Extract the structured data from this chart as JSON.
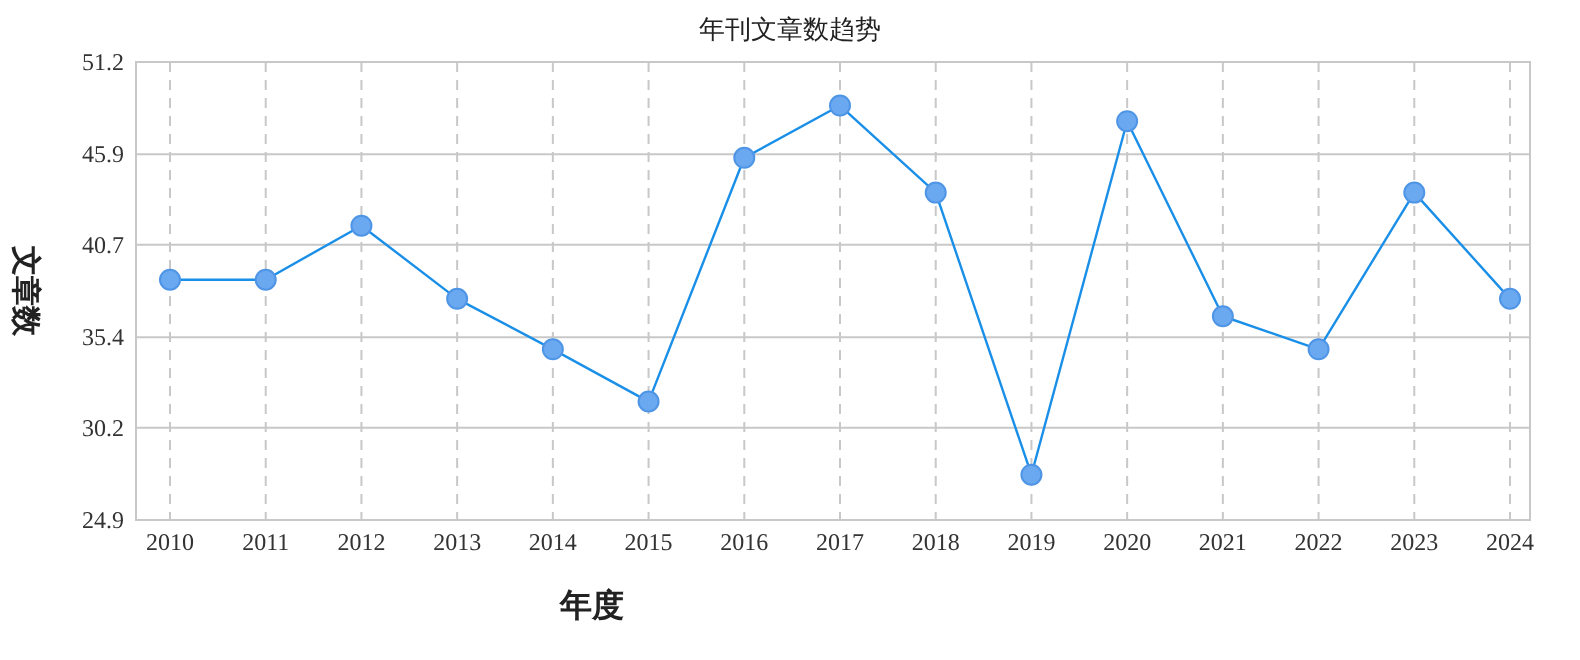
{
  "chart_data": {
    "type": "line",
    "title": "年刊文章数趋势",
    "xlabel": "年度",
    "ylabel": "文章数",
    "categories": [
      "2010",
      "2011",
      "2012",
      "2013",
      "2014",
      "2015",
      "2016",
      "2017",
      "2018",
      "2019",
      "2020",
      "2021",
      "2022",
      "2023",
      "2024"
    ],
    "series": [
      {
        "color": "#1a8fe8",
        "values": [
          38.7,
          38.7,
          41.8,
          37.6,
          34.7,
          31.7,
          45.7,
          48.7,
          43.7,
          27.5,
          47.8,
          36.6,
          34.7,
          43.7,
          37.6
        ]
      }
    ],
    "ylim": [
      24.9,
      51.2
    ],
    "yticks": [
      24.9,
      30.2,
      35.4,
      40.7,
      45.9,
      51.2
    ],
    "grid": true,
    "marker": "circle",
    "line_style": "solid"
  }
}
